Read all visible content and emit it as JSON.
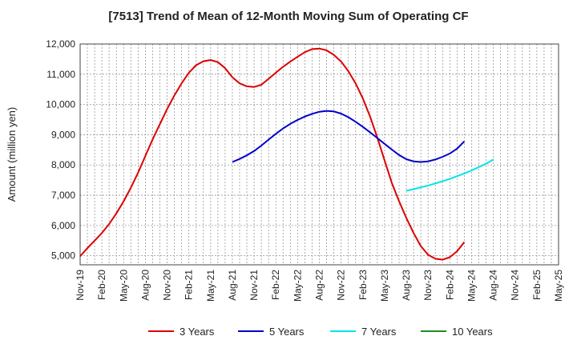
{
  "chart_data": {
    "type": "line",
    "title": "[7513]  Trend of Mean of 12-Month Moving Sum of Operating CF",
    "xlabel": "",
    "ylabel": "Amount (million yen)",
    "ylim": [
      4700,
      12000
    ],
    "y_ticks": [
      5000,
      6000,
      7000,
      8000,
      9000,
      10000,
      11000,
      12000
    ],
    "y_tick_labels": [
      "5,000",
      "6,000",
      "7,000",
      "8,000",
      "9,000",
      "10,000",
      "11,000",
      "12,000"
    ],
    "x_tick_labels": [
      "Nov-19",
      "Feb-20",
      "May-20",
      "Aug-20",
      "Nov-20",
      "Feb-21",
      "May-21",
      "Aug-21",
      "Nov-21",
      "Feb-22",
      "May-22",
      "Aug-22",
      "Nov-22",
      "Feb-23",
      "May-23",
      "Aug-23",
      "Nov-23",
      "Feb-24",
      "May-24",
      "Aug-24",
      "Nov-24",
      "Feb-25",
      "May-25"
    ],
    "x_months_total": 66,
    "grid": true,
    "series": [
      {
        "name": "3 Years",
        "color": "#dd0000",
        "start_index": 0,
        "values": [
          4980,
          5250,
          5500,
          5750,
          6050,
          6400,
          6800,
          7250,
          7750,
          8300,
          8850,
          9350,
          9850,
          10300,
          10700,
          11050,
          11300,
          11430,
          11470,
          11400,
          11200,
          10900,
          10700,
          10600,
          10580,
          10650,
          10850,
          11050,
          11250,
          11420,
          11580,
          11730,
          11830,
          11850,
          11790,
          11640,
          11420,
          11100,
          10700,
          10200,
          9600,
          8900,
          8150,
          7400,
          6800,
          6250,
          5750,
          5320,
          5030,
          4900,
          4870,
          4950,
          5150,
          5450
        ]
      },
      {
        "name": "5 Years",
        "color": "#0000cc",
        "start_index": 21,
        "values": [
          8100,
          8200,
          8320,
          8460,
          8640,
          8840,
          9030,
          9210,
          9360,
          9490,
          9600,
          9690,
          9760,
          9790,
          9770,
          9700,
          9580,
          9430,
          9260,
          9080,
          8890,
          8700,
          8510,
          8330,
          8190,
          8120,
          8100,
          8120,
          8180,
          8270,
          8380,
          8540,
          8780
        ]
      },
      {
        "name": "7 Years",
        "color": "#00e5e5",
        "start_index": 45,
        "values": [
          7150,
          7200,
          7260,
          7320,
          7390,
          7460,
          7540,
          7630,
          7720,
          7820,
          7930,
          8040,
          8180
        ]
      },
      {
        "name": "10 Years",
        "color": "#228b22",
        "start_index": 0,
        "values": []
      }
    ],
    "legend_position": "bottom"
  }
}
